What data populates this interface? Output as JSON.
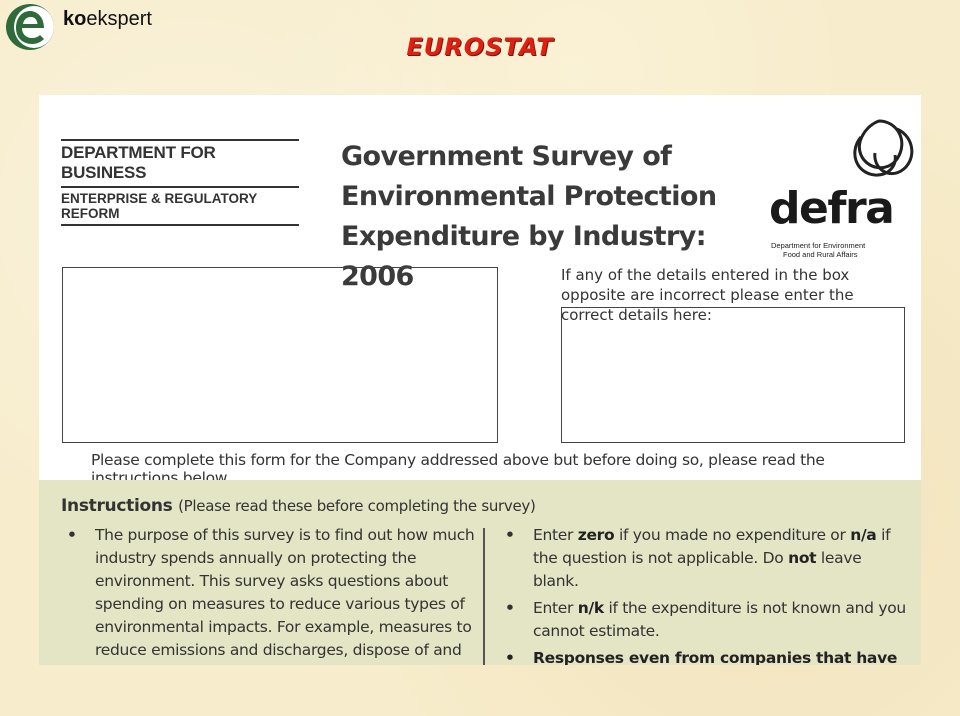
{
  "header": {
    "brand_bold": "ko",
    "brand_rest": "ekspert",
    "title": "EUROSTAT"
  },
  "document": {
    "dept_line1": "DEPARTMENT FOR BUSINESS",
    "dept_line2": "ENTERPRISE & REGULATORY REFORM",
    "title_lines": [
      "Government Survey of",
      "Environmental Protection",
      "Expenditure by Industry: 2006"
    ],
    "defra_word": "defra",
    "defra_sub1": "Department for Environment",
    "defra_sub2": "Food and Rural Affairs",
    "correction_note": "If any of the details entered in the box opposite are incorrect please enter the correct details here:",
    "please_line": "Please complete this form for the Company addressed above but before doing so, please read the instructions below."
  },
  "instructions": {
    "heading": "Instructions",
    "heading_note": "(Please read these before completing the survey)",
    "left_bullet": "The purpose of this survey is to find out how much industry spends annually on protecting the environment. This survey asks questions about spending on measures to reduce various types of environmental impacts. For example, measures to reduce emissions and discharges, dispose of and treat waste, reduce noise pollution, etc.",
    "right_b1_pre": "Enter ",
    "right_b1_zero": "zero",
    "right_b1_mid": " if you made no expenditure or ",
    "right_b1_na": "n/a",
    "right_b1_mid2": " if the question is not applicable. Do ",
    "right_b1_not": "not",
    "right_b1_post": " leave blank.",
    "right_b2_pre": "Enter ",
    "right_b2_nk": "n/k",
    "right_b2_post": " if the expenditure is not known and you cannot estimate.",
    "right_b3": "Responses even from companies that have had no costs are very important for the quality of the"
  }
}
